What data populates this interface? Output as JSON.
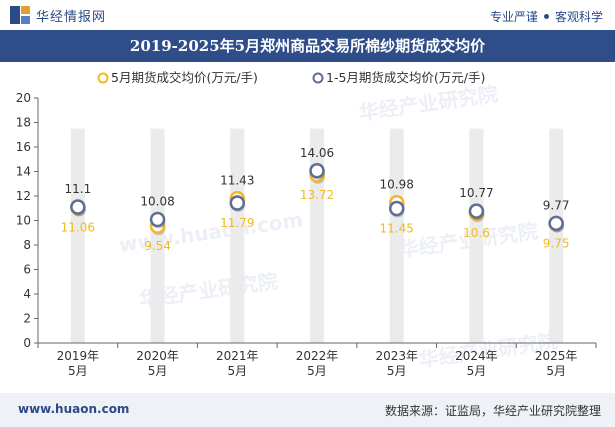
{
  "header": {
    "brand": "华经情报网",
    "slogan_left": "专业严谨",
    "slogan_right": "客观科学"
  },
  "chart_data": {
    "type": "line",
    "title": "2019-2025年5月郑州商品交易所棉纱期货成交均价",
    "categories": [
      "2019年\n5月",
      "2020年\n5月",
      "2021年\n5月",
      "2022年\n5月",
      "2023年\n5月",
      "2024年\n5月",
      "2025年\n5月"
    ],
    "series": [
      {
        "name": "5月期货成交均价(万元/手)",
        "values": [
          11.06,
          9.54,
          11.79,
          13.72,
          11.45,
          10.6,
          9.75
        ],
        "color": "#f3b823"
      },
      {
        "name": "1-5月期货成交均价(万元/手)",
        "values": [
          11.1,
          10.08,
          11.43,
          14.06,
          10.98,
          10.77,
          9.77
        ],
        "color": "#5d6f92"
      }
    ],
    "ylim": [
      0,
      20
    ],
    "yticks": [
      0,
      2,
      4,
      6,
      8,
      10,
      12,
      14,
      16,
      18,
      20
    ],
    "legend_position": "top-center",
    "grid": false
  },
  "watermarks": [
    "华经产业研究院",
    "www.huaon.com"
  ],
  "footer": {
    "site": "www.huaon.com",
    "source": "数据来源：证监局，华经产业研究院整理"
  },
  "colors": {
    "title_bar": "#2f4e89",
    "column_band": "#ebebeb"
  }
}
